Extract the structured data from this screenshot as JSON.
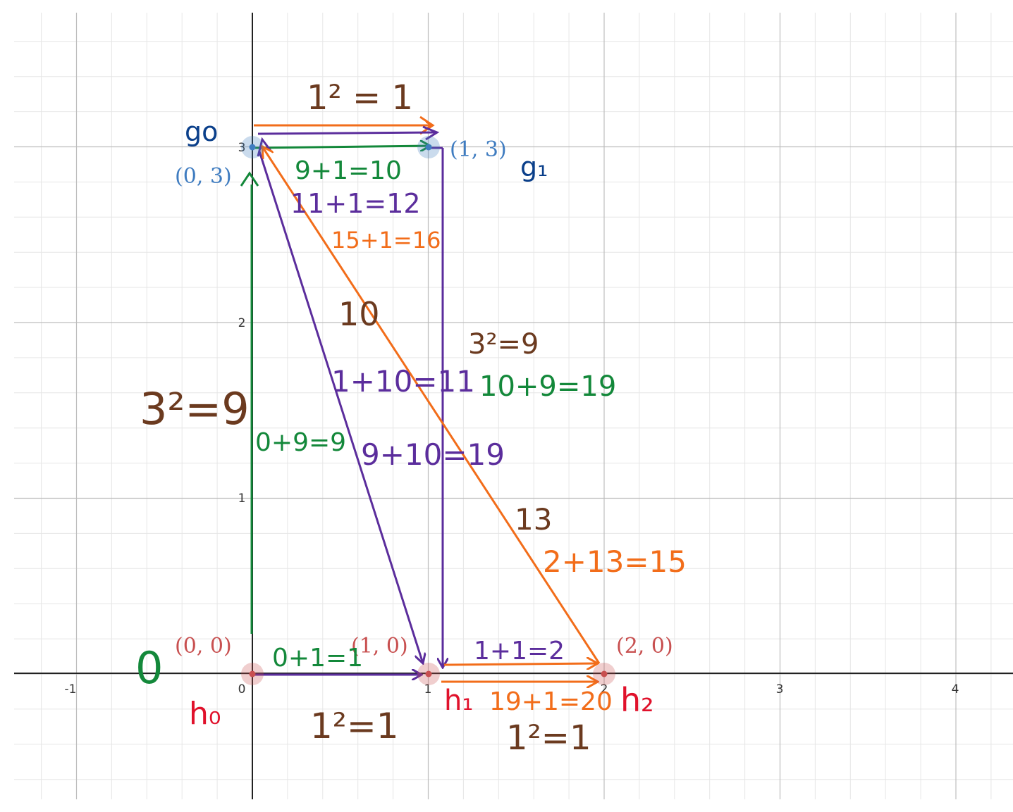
{
  "axes": {
    "x_ticks": [
      "-1",
      "0",
      "1",
      "2",
      "3",
      "4"
    ],
    "y_ticks": [
      "1",
      "2",
      "3"
    ]
  },
  "colors": {
    "brown": "#6b3a1f",
    "green": "#13883a",
    "purple": "#5b2d9c",
    "orange": "#f26d1a",
    "red": "#e0112b",
    "navy": "#0a3f8a",
    "point_blue": "#3f7cc0",
    "point_red": "#c85050"
  },
  "points": {
    "p00": "(0, 0)",
    "p10": "(1, 0)",
    "p20": "(2, 0)",
    "p03": "(0, 3)",
    "p13": "(1, 3)"
  },
  "annotations": {
    "top_orange_edge": "1² = 1",
    "g0": "go",
    "g1": "g₁",
    "green_top": "9+1=10",
    "purple_top": "11+1=12",
    "orange_top": "15+1=16",
    "diag_ten": "10",
    "right_vertical_cost": "3²=9",
    "purple_eq_mid": "1+10=11",
    "green_right": "10+9=19",
    "left_vertical_cost": "3²=9",
    "green_left": "0+9=9",
    "purple_mid_low": "9+10=19",
    "thirteen": "13",
    "orange_right": "2+13=15",
    "zero": "0",
    "green_bottom": "0+1=1",
    "purple_bottom_right": "1+1=2",
    "h0": "h₀",
    "h1": "h₁",
    "orange_bottom": "19+1=20",
    "h2": "h₂",
    "bottom_left_cost": "1²=1",
    "bottom_right_cost": "1²=1"
  }
}
